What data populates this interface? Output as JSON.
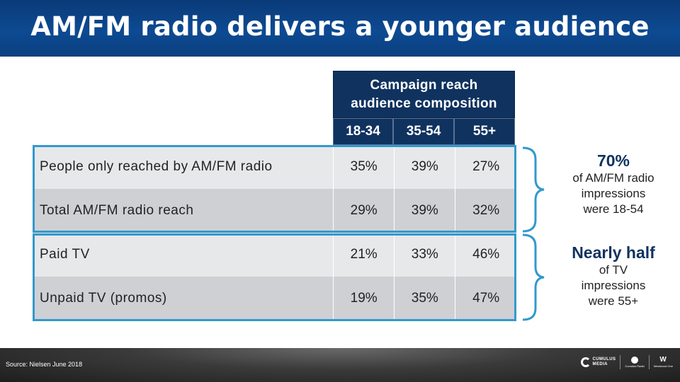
{
  "title": "AM/FM radio delivers a younger audience",
  "table": {
    "header_top": [
      "Campaign reach",
      "audience composition"
    ],
    "columns": [
      "18-34",
      "35-54",
      "55+"
    ],
    "rows": [
      {
        "label": "People only reached by AM/FM radio",
        "values": [
          "35%",
          "39%",
          "27%"
        ]
      },
      {
        "label": "Total AM/FM radio reach",
        "values": [
          "29%",
          "39%",
          "32%"
        ]
      },
      {
        "label": "Paid TV",
        "values": [
          "21%",
          "33%",
          "46%"
        ]
      },
      {
        "label": "Unpaid TV (promos)",
        "values": [
          "19%",
          "35%",
          "47%"
        ]
      }
    ]
  },
  "callouts": [
    {
      "big": "70%",
      "lines": [
        "of AM/FM radio",
        "impressions",
        "were 18-54"
      ]
    },
    {
      "big": "Nearly half",
      "lines": [
        "of TV",
        "impressions",
        "were 55+"
      ]
    }
  ],
  "footer": {
    "source": "Source: Nielsen June 2018",
    "logo_main": [
      "CUMULUS",
      "MEDIA"
    ],
    "logo_2": "Cumulus Radio",
    "logo_3": "Westwood One"
  },
  "colors": {
    "header_navy": "#10325f",
    "accent_blue": "#3399cc",
    "title_blue": "#0d4a92"
  }
}
